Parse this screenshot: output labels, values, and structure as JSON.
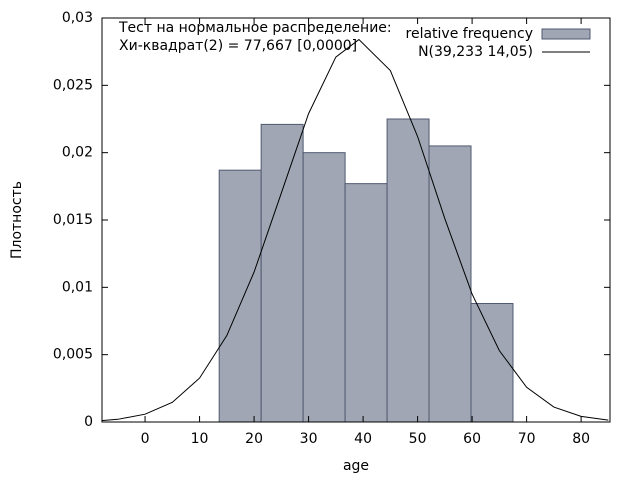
{
  "chart_data": {
    "type": "histogram",
    "xlabel": "age",
    "ylabel": "Плотность",
    "annotations": [
      "Тест на нормальное распределение:",
      "Хи-квадрат(2) = 77,667 [0,0000]"
    ],
    "bins": [
      13.6,
      21.3,
      29.0,
      36.7,
      44.4,
      52.1,
      59.8,
      67.5
    ],
    "series": [
      {
        "name": "relative frequency",
        "color": "#a0a6b4",
        "values": [
          0.0187,
          0.0221,
          0.02,
          0.0177,
          0.0225,
          0.0205,
          0.0088
        ]
      },
      {
        "name": "N(39,233 14,05)",
        "color": "#000000",
        "x": [
          -8,
          -5,
          0,
          5,
          10,
          15,
          20,
          25,
          30,
          35,
          39.233,
          45,
          50,
          55,
          60,
          65,
          70,
          75,
          80,
          85
        ],
        "values": [
          0.0001,
          0.0002,
          0.00058,
          0.00146,
          0.00326,
          0.00642,
          0.01113,
          0.017,
          0.0229,
          0.0271,
          0.0284,
          0.0261,
          0.0212,
          0.0151,
          0.0095,
          0.0053,
          0.00258,
          0.00111,
          0.00042,
          0.00014
        ]
      }
    ],
    "xlim": [
      -7.9,
      85.3
    ],
    "xticks": [
      0,
      10,
      20,
      30,
      40,
      50,
      60,
      70,
      80
    ],
    "ylim": [
      0,
      0.03
    ],
    "yticks": [
      0,
      {
        "value": 0.005,
        "label": "0,005"
      },
      {
        "value": 0.01,
        "label": "0,01"
      },
      {
        "value": 0.015,
        "label": "0,015"
      },
      {
        "value": 0.02,
        "label": "0,02"
      },
      {
        "value": 0.025,
        "label": "0,025"
      },
      {
        "value": 0.03,
        "label": "0,03"
      }
    ]
  }
}
